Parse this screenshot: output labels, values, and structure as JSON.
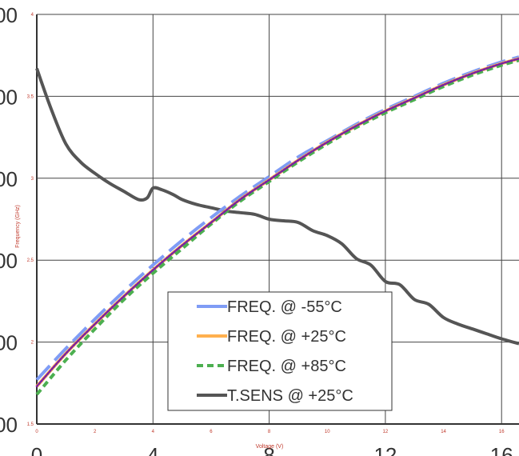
{
  "chart_data": {
    "type": "line",
    "xlabel": "Voltage (V)",
    "ylabel": "Frequency (GHz)",
    "xlim": [
      0,
      16.6
    ],
    "ylim": [
      1.5,
      4.0
    ],
    "grid": true,
    "legend_position": "lower-center",
    "x_ticks": [
      "0",
      "4",
      "8",
      "12",
      "16"
    ],
    "y_ticks": [
      "00",
      "00",
      "00",
      "00",
      "00",
      "00"
    ],
    "y_tick_values": [
      1.5,
      2.0,
      2.5,
      3.0,
      3.5,
      4.0
    ],
    "minor_x_ticks": [
      "0",
      "2",
      "4",
      "6",
      "8",
      "10",
      "12",
      "14",
      "16"
    ],
    "minor_y_ticks": [
      "1.5",
      "2",
      "2.5",
      "3",
      "3.5",
      "4"
    ],
    "series": [
      {
        "name": "FREQ. @ -55°C",
        "color": "#7f9cf5",
        "style": "long-dash",
        "x": [
          0,
          1,
          2,
          3,
          4,
          5,
          6,
          7,
          8,
          9,
          10,
          11,
          12,
          13,
          14,
          15,
          16,
          16.6
        ],
        "y": [
          1.77,
          1.96,
          2.14,
          2.31,
          2.47,
          2.62,
          2.76,
          2.89,
          3.01,
          3.13,
          3.23,
          3.33,
          3.42,
          3.5,
          3.58,
          3.65,
          3.71,
          3.74
        ]
      },
      {
        "name": "FREQ. @ +25°C",
        "color": "#ffb04f",
        "style": "solid",
        "x": [
          0,
          1,
          2,
          3,
          4,
          5,
          6,
          7,
          8,
          9,
          10,
          11,
          12,
          13,
          14,
          15,
          16,
          16.6
        ],
        "y": [
          1.73,
          1.93,
          2.11,
          2.28,
          2.44,
          2.59,
          2.73,
          2.87,
          2.99,
          3.11,
          3.22,
          3.32,
          3.41,
          3.49,
          3.57,
          3.64,
          3.7,
          3.73
        ]
      },
      {
        "name": "FREQ. @ +85°C",
        "color": "#4caf50",
        "style": "short-dash",
        "x": [
          0,
          1,
          2,
          3,
          4,
          5,
          6,
          7,
          8,
          9,
          10,
          11,
          12,
          13,
          14,
          15,
          16,
          16.6
        ],
        "y": [
          1.68,
          1.89,
          2.08,
          2.26,
          2.42,
          2.57,
          2.72,
          2.86,
          2.98,
          3.1,
          3.21,
          3.31,
          3.4,
          3.48,
          3.56,
          3.63,
          3.69,
          3.72
        ]
      },
      {
        "name": "",
        "color": "#7b1fa2",
        "style": "dotted",
        "x": [
          0,
          1,
          2,
          3,
          4,
          5,
          6,
          7,
          8,
          9,
          10,
          11,
          12,
          13,
          14,
          15,
          16,
          16.6
        ],
        "y": [
          1.73,
          1.93,
          2.11,
          2.28,
          2.44,
          2.59,
          2.73,
          2.87,
          2.99,
          3.11,
          3.22,
          3.32,
          3.41,
          3.49,
          3.57,
          3.64,
          3.7,
          3.73
        ]
      },
      {
        "name": "T.SENS @ +25°C",
        "color": "#555555",
        "style": "solid",
        "x": [
          0,
          0.5,
          1,
          1.5,
          2,
          2.5,
          3,
          3.5,
          3.8,
          4,
          4.3,
          4.7,
          5,
          5.5,
          6,
          6.5,
          7,
          7.5,
          8,
          8.5,
          9,
          9.5,
          10,
          10.5,
          11,
          11.5,
          12,
          12.5,
          13,
          13.5,
          14,
          14.5,
          15,
          15.5,
          16,
          16.6
        ],
        "y": [
          3.67,
          3.42,
          3.21,
          3.1,
          3.03,
          2.97,
          2.92,
          2.87,
          2.88,
          2.94,
          2.93,
          2.9,
          2.87,
          2.84,
          2.82,
          2.8,
          2.79,
          2.78,
          2.75,
          2.74,
          2.73,
          2.68,
          2.65,
          2.6,
          2.51,
          2.47,
          2.37,
          2.35,
          2.26,
          2.23,
          2.15,
          2.11,
          2.08,
          2.05,
          2.02,
          1.99
        ]
      }
    ]
  }
}
